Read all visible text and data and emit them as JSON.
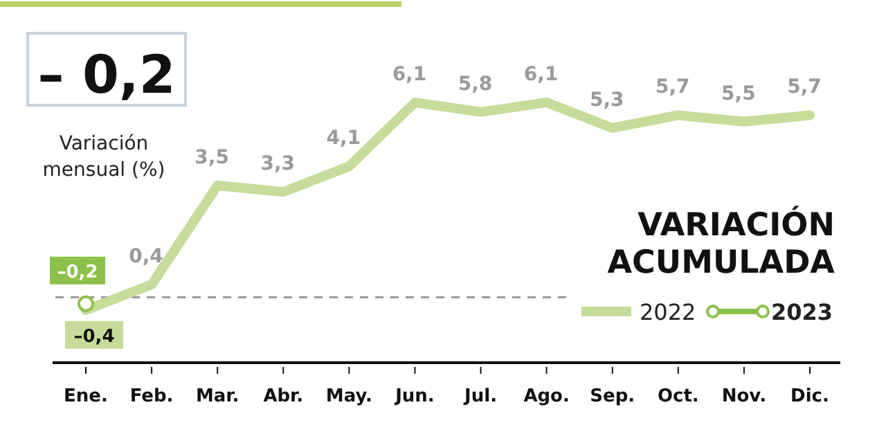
{
  "chart_data": {
    "type": "line",
    "title": "VARIACIÓN ACUMULADA",
    "annotations": [
      "– 0,2",
      "Variación mensual (%)"
    ],
    "categories": [
      "Ene.",
      "Feb.",
      "Mar.",
      "Abr.",
      "May.",
      "Jun.",
      "Jul.",
      "Ago.",
      "Sep.",
      "Oct.",
      "Nov.",
      "Dic."
    ],
    "series": [
      {
        "name": "2022",
        "color": "#c5dc9a",
        "marker": "none",
        "values": [
          -0.4,
          0.4,
          3.5,
          3.3,
          4.1,
          6.1,
          5.8,
          6.1,
          5.3,
          5.7,
          5.5,
          5.7
        ],
        "value_labels": [
          "–0,4",
          "0,4",
          "3,5",
          "3,3",
          "4,1",
          "6,1",
          "5,8",
          "6,1",
          "5,3",
          "5,7",
          "5,5",
          "5,7"
        ]
      },
      {
        "name": "2023",
        "color": "#8dc04a",
        "marker": "circle",
        "values": [
          -0.2,
          null,
          null,
          null,
          null,
          null,
          null,
          null,
          null,
          null,
          null,
          null
        ],
        "value_labels": [
          "–0,2",
          null,
          null,
          null,
          null,
          null,
          null,
          null,
          null,
          null,
          null,
          null
        ]
      }
    ],
    "ref_lines": [
      {
        "axis": "y",
        "value": 0,
        "line_style": "dashed",
        "color": "#999999"
      }
    ],
    "legend": "bottom right"
  }
}
